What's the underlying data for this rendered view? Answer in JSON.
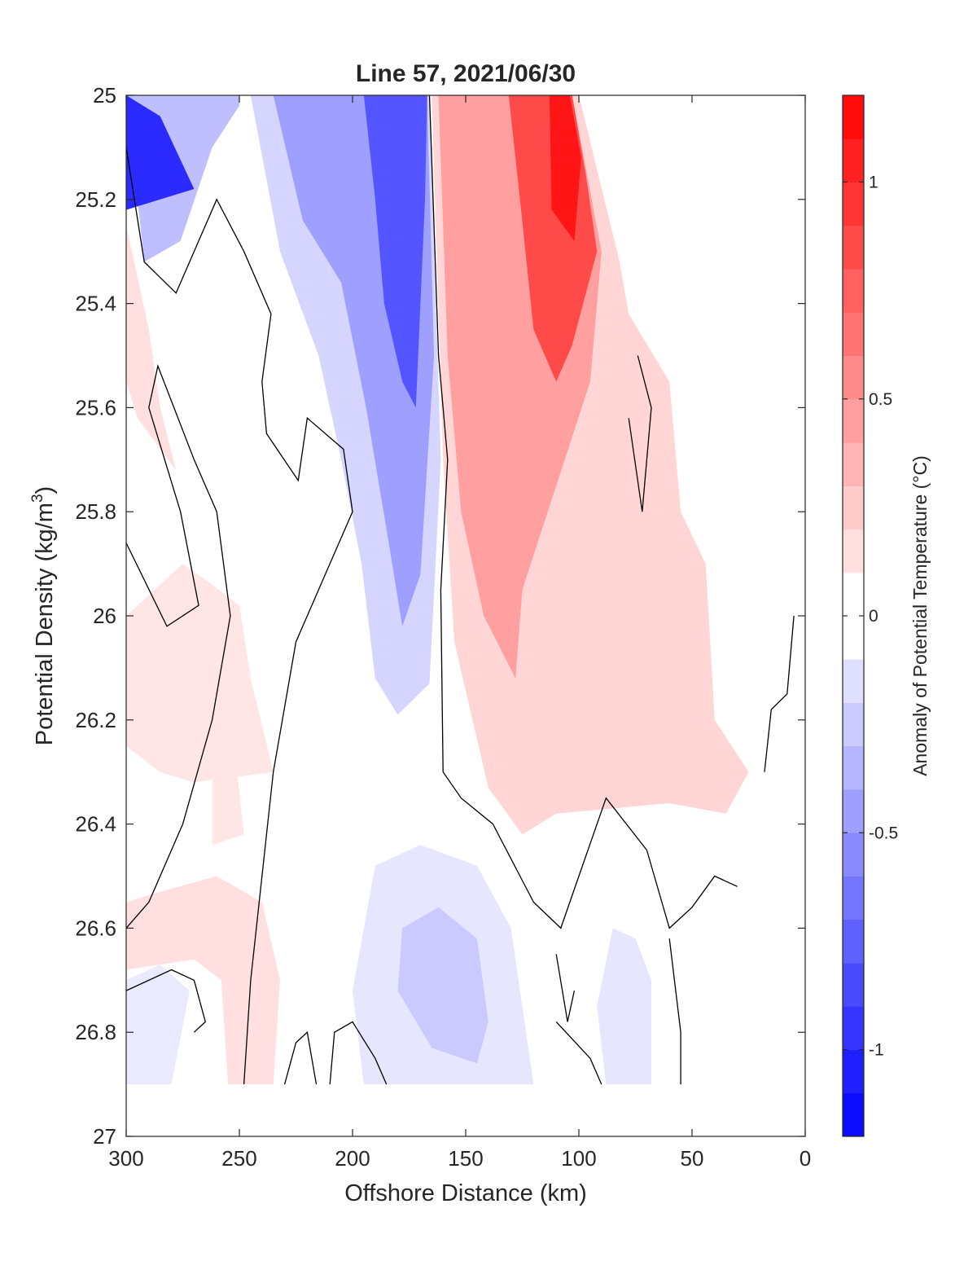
{
  "chart_data": {
    "type": "heatmap",
    "subtype": "filled-contour",
    "title": "Line 57, 2021/06/30",
    "xlabel": "Offshore Distance (km)",
    "ylabel_main": "Potential Density (kg/m",
    "ylabel_sup": "3",
    "ylabel_end": ")",
    "colorbar_label": "Anomaly of Potential Temperature (°C)",
    "xlim": [
      300,
      0
    ],
    "x_reversed": true,
    "ylim": [
      25,
      27
    ],
    "y_reversed": true,
    "clim": [
      -1.2,
      1.2
    ],
    "contour_step": 0.1,
    "x_ticks": [
      300,
      250,
      200,
      150,
      100,
      50,
      0
    ],
    "x_tick_labels": [
      "300",
      "250",
      "200",
      "150",
      "100",
      "50",
      "0"
    ],
    "y_ticks": [
      25,
      25.2,
      25.4,
      25.6,
      25.8,
      26,
      26.2,
      26.4,
      26.6,
      26.8,
      27
    ],
    "y_tick_labels": [
      "25",
      "25.2",
      "25.4",
      "25.6",
      "25.8",
      "26",
      "26.2",
      "26.4",
      "26.6",
      "26.8",
      "27"
    ],
    "colorbar_ticks": [
      -1,
      -0.5,
      0,
      0.5,
      1
    ],
    "colorbar_tick_labels": [
      "-1",
      "-0.5",
      "0",
      "0.5",
      "1"
    ],
    "colorbar_levels": [
      -1.2,
      -1.1,
      -1.0,
      -0.9,
      -0.8,
      -0.7,
      -0.6,
      -0.5,
      -0.4,
      -0.3,
      -0.2,
      -0.1,
      0,
      0.1,
      0.2,
      0.3,
      0.4,
      0.5,
      0.6,
      0.7,
      0.8,
      0.9,
      1.0,
      1.1,
      1.2
    ],
    "colormap": {
      "negative": "#0000ff",
      "zero": "#ffffff",
      "positive": "#ff0000"
    },
    "regions": [
      {
        "name": "surface cold core (offshore)",
        "points": [
          [
            285,
            25.04
          ],
          [
            270,
            25.18
          ],
          [
            300,
            25.22
          ],
          [
            300,
            25.0
          ]
        ],
        "value": -1.0
      },
      {
        "name": "surface cold band edge",
        "points": [
          [
            300,
            25.0
          ],
          [
            292,
            25.32
          ],
          [
            276,
            25.28
          ],
          [
            262,
            25.1
          ],
          [
            250,
            25.02
          ],
          [
            250,
            25.0
          ]
        ],
        "value": -0.3
      },
      {
        "name": "cold tongue outer",
        "points": [
          [
            245,
            25.0
          ],
          [
            232,
            25.3
          ],
          [
            215,
            25.5
          ],
          [
            205,
            25.7
          ],
          [
            196,
            25.9
          ],
          [
            190,
            26.12
          ],
          [
            180,
            26.19
          ],
          [
            166,
            26.13
          ],
          [
            161,
            25.7
          ],
          [
            166,
            25.0
          ]
        ],
        "value": -0.2
      },
      {
        "name": "cold tongue mid",
        "points": [
          [
            235,
            25.0
          ],
          [
            222,
            25.24
          ],
          [
            205,
            25.36
          ],
          [
            194,
            25.6
          ],
          [
            184,
            25.86
          ],
          [
            178,
            26.02
          ],
          [
            170,
            25.92
          ],
          [
            164,
            25.5
          ],
          [
            167,
            25.0
          ]
        ],
        "value": -0.45
      },
      {
        "name": "cold tongue core",
        "points": [
          [
            195,
            25.0
          ],
          [
            190,
            25.2
          ],
          [
            186,
            25.4
          ],
          [
            178,
            25.55
          ],
          [
            172,
            25.6
          ],
          [
            168,
            25.2
          ],
          [
            167,
            25.0
          ]
        ],
        "value": -0.8
      },
      {
        "name": "warm region outer",
        "points": [
          [
            165,
            25.0
          ],
          [
            100,
            25.0
          ],
          [
            82,
            25.32
          ],
          [
            78,
            25.42
          ],
          [
            60,
            25.55
          ],
          [
            55,
            25.8
          ],
          [
            44,
            25.9
          ],
          [
            40,
            26.2
          ],
          [
            25,
            26.3
          ],
          [
            35,
            26.38
          ],
          [
            60,
            26.36
          ],
          [
            110,
            26.38
          ],
          [
            125,
            26.42
          ],
          [
            140,
            26.33
          ],
          [
            155,
            26.05
          ],
          [
            160,
            25.7
          ]
        ],
        "value": 0.2
      },
      {
        "name": "warm region mid",
        "points": [
          [
            162,
            25.0
          ],
          [
            103,
            25.0
          ],
          [
            90,
            25.3
          ],
          [
            95,
            25.55
          ],
          [
            110,
            25.75
          ],
          [
            125,
            25.95
          ],
          [
            128,
            26.12
          ],
          [
            142,
            26.0
          ],
          [
            152,
            25.8
          ],
          [
            158,
            25.5
          ]
        ],
        "value": 0.45
      },
      {
        "name": "warm core",
        "points": [
          [
            131,
            25.0
          ],
          [
            103,
            25.0
          ],
          [
            97,
            25.15
          ],
          [
            92,
            25.3
          ],
          [
            103,
            25.48
          ],
          [
            110,
            25.55
          ],
          [
            120,
            25.45
          ],
          [
            126,
            25.2
          ]
        ],
        "value": 0.85
      },
      {
        "name": "warm core max",
        "points": [
          [
            113,
            25.0
          ],
          [
            104,
            25.0
          ],
          [
            99,
            25.12
          ],
          [
            102,
            25.28
          ],
          [
            112,
            25.22
          ]
        ],
        "value": 1.1
      },
      {
        "name": "offshore warm patch upper",
        "points": [
          [
            300,
            25.25
          ],
          [
            290,
            25.45
          ],
          [
            285,
            25.6
          ],
          [
            278,
            25.72
          ],
          [
            295,
            25.62
          ],
          [
            300,
            25.55
          ]
        ],
        "value": 0.15
      },
      {
        "name": "warm band 26.1",
        "points": [
          [
            300,
            26.0
          ],
          [
            275,
            25.9
          ],
          [
            262,
            25.94
          ],
          [
            250,
            25.98
          ],
          [
            245,
            26.12
          ],
          [
            235,
            26.3
          ],
          [
            270,
            26.32
          ],
          [
            285,
            26.3
          ],
          [
            300,
            26.25
          ]
        ],
        "value": 0.12
      },
      {
        "name": "warm patch 26.3",
        "points": [
          [
            262,
            26.28
          ],
          [
            252,
            26.26
          ],
          [
            248,
            26.42
          ],
          [
            262,
            26.44
          ]
        ],
        "value": 0.12
      },
      {
        "name": "deep warm patch",
        "points": [
          [
            300,
            26.55
          ],
          [
            285,
            26.53
          ],
          [
            260,
            26.5
          ],
          [
            240,
            26.55
          ],
          [
            232,
            26.7
          ],
          [
            235,
            26.9
          ],
          [
            255,
            26.9
          ],
          [
            258,
            26.7
          ],
          [
            270,
            26.66
          ],
          [
            300,
            26.68
          ]
        ],
        "value": 0.15
      },
      {
        "name": "deep cold lens outer",
        "points": [
          [
            190,
            26.48
          ],
          [
            170,
            26.44
          ],
          [
            145,
            26.48
          ],
          [
            130,
            26.6
          ],
          [
            125,
            26.75
          ],
          [
            120,
            26.9
          ],
          [
            195,
            26.9
          ],
          [
            200,
            26.72
          ]
        ],
        "value": -0.12
      },
      {
        "name": "deep cold lens inner",
        "points": [
          [
            178,
            26.6
          ],
          [
            162,
            26.56
          ],
          [
            145,
            26.62
          ],
          [
            140,
            26.78
          ],
          [
            145,
            26.86
          ],
          [
            165,
            26.83
          ],
          [
            180,
            26.72
          ]
        ],
        "value": -0.25
      },
      {
        "name": "deep cold patch nearshore",
        "points": [
          [
            85,
            26.6
          ],
          [
            75,
            26.62
          ],
          [
            68,
            26.7
          ],
          [
            68,
            26.9
          ],
          [
            88,
            26.9
          ],
          [
            92,
            26.75
          ]
        ],
        "value": -0.12
      },
      {
        "name": "deep cold patch offshore",
        "points": [
          [
            300,
            26.7
          ],
          [
            285,
            26.67
          ],
          [
            272,
            26.72
          ],
          [
            280,
            26.9
          ],
          [
            300,
            26.9
          ]
        ],
        "value": -0.1
      }
    ],
    "zero_contours": [
      [
        [
          166,
          25.0
        ],
        [
          162,
          25.5
        ],
        [
          158,
          25.7
        ],
        [
          161,
          25.95
        ],
        [
          160,
          26.3
        ],
        [
          152,
          26.35
        ],
        [
          138,
          26.4
        ],
        [
          120,
          26.55
        ],
        [
          108,
          26.6
        ],
        [
          100,
          26.5
        ],
        [
          88,
          26.35
        ],
        [
          70,
          26.45
        ],
        [
          60,
          26.6
        ],
        [
          50,
          26.56
        ],
        [
          40,
          26.5
        ],
        [
          30,
          26.52
        ]
      ],
      [
        [
          300,
          25.1
        ],
        [
          292,
          25.32
        ],
        [
          278,
          25.38
        ],
        [
          270,
          25.3
        ],
        [
          260,
          25.2
        ],
        [
          248,
          25.3
        ],
        [
          236,
          25.42
        ],
        [
          240,
          25.55
        ],
        [
          238,
          25.65
        ],
        [
          224,
          25.74
        ],
        [
          220,
          25.62
        ],
        [
          204,
          25.68
        ],
        [
          200,
          25.8
        ],
        [
          212,
          25.92
        ],
        [
          225,
          26.05
        ],
        [
          235,
          26.3
        ],
        [
          245,
          26.7
        ],
        [
          248,
          26.9
        ]
      ],
      [
        [
          300,
          25.86
        ],
        [
          282,
          26.02
        ],
        [
          268,
          25.98
        ],
        [
          276,
          25.8
        ],
        [
          290,
          25.6
        ],
        [
          286,
          25.52
        ],
        [
          270,
          25.7
        ],
        [
          260,
          25.8
        ],
        [
          254,
          26.0
        ],
        [
          262,
          26.2
        ],
        [
          275,
          26.4
        ],
        [
          290,
          26.55
        ],
        [
          300,
          26.6
        ]
      ],
      [
        [
          74,
          25.5
        ],
        [
          68,
          25.6
        ],
        [
          72,
          25.8
        ],
        [
          78,
          25.62
        ]
      ],
      [
        [
          300,
          26.72
        ],
        [
          280,
          26.68
        ],
        [
          270,
          26.7
        ],
        [
          265,
          26.78
        ],
        [
          270,
          26.8
        ]
      ],
      [
        [
          230,
          26.9
        ],
        [
          225,
          26.82
        ],
        [
          220,
          26.8
        ],
        [
          216,
          26.9
        ]
      ],
      [
        [
          210,
          26.9
        ],
        [
          208,
          26.8
        ],
        [
          200,
          26.78
        ],
        [
          190,
          26.85
        ],
        [
          185,
          26.9
        ]
      ],
      [
        [
          110,
          26.65
        ],
        [
          105,
          26.78
        ],
        [
          102,
          26.72
        ]
      ],
      [
        [
          110,
          26.78
        ],
        [
          95,
          26.85
        ],
        [
          90,
          26.9
        ]
      ],
      [
        [
          60,
          26.62
        ],
        [
          55,
          26.8
        ],
        [
          55,
          26.9
        ]
      ],
      [
        [
          5,
          26.0
        ],
        [
          8,
          26.15
        ],
        [
          15,
          26.18
        ],
        [
          18,
          26.3
        ]
      ]
    ]
  }
}
